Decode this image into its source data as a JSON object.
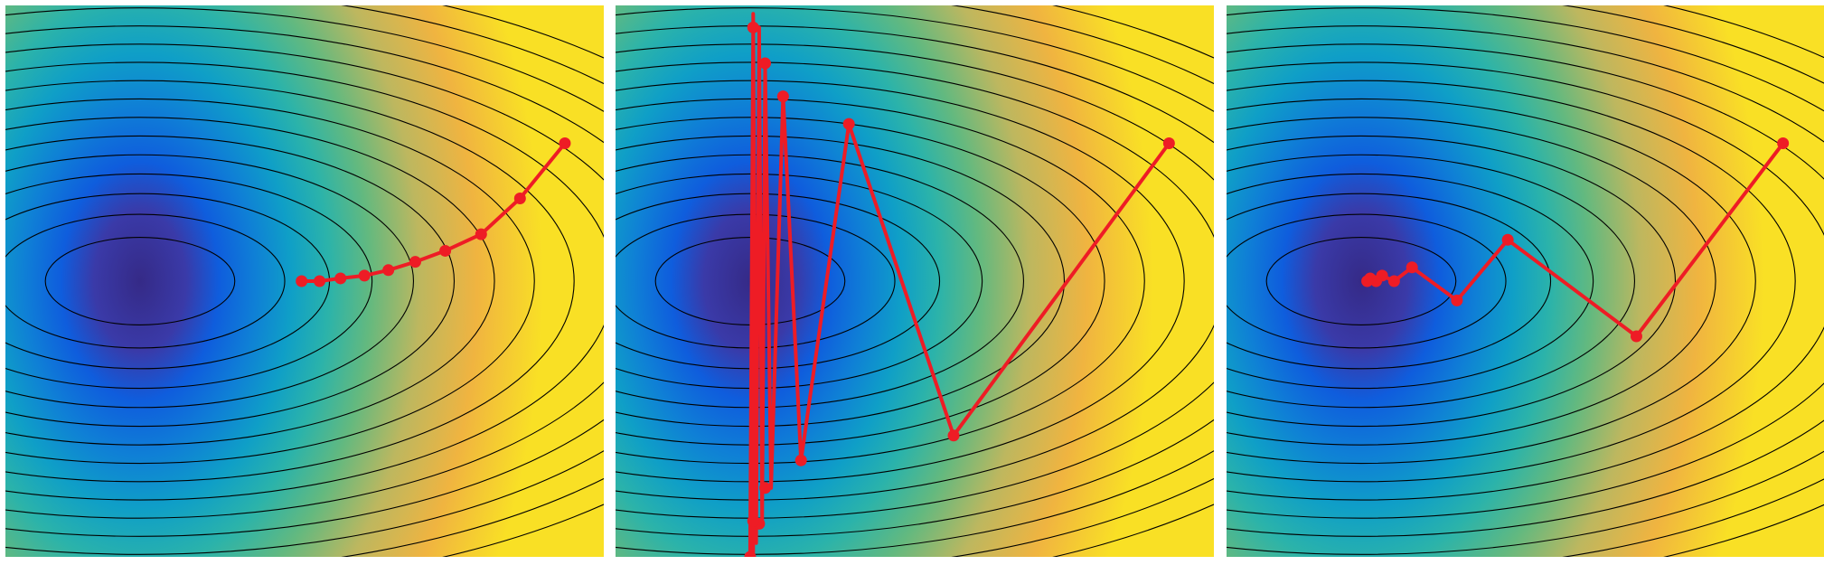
{
  "chart_data": [
    {
      "type": "contour",
      "xlim": [
        -1,
        1
      ],
      "ylim": [
        -1,
        1
      ],
      "center": [
        -0.55,
        0.0
      ],
      "contour_levels": [
        0.06,
        0.14,
        0.24,
        0.36,
        0.5,
        0.66,
        0.84,
        1.04,
        1.26,
        1.5,
        1.76,
        2.04,
        2.34,
        2.66,
        3.0
      ],
      "path": [
        [
          0.87,
          0.5
        ],
        [
          0.72,
          0.3
        ],
        [
          0.59,
          0.17
        ],
        [
          0.47,
          0.11
        ],
        [
          0.37,
          0.07
        ],
        [
          0.28,
          0.04
        ],
        [
          0.2,
          0.02
        ],
        [
          0.12,
          0.01
        ],
        [
          0.05,
          0.0
        ],
        [
          -0.01,
          0.0
        ]
      ],
      "colors": {
        "path": "#ee1c25",
        "contour_line": "#000000"
      }
    },
    {
      "type": "contour",
      "xlim": [
        -1,
        1
      ],
      "ylim": [
        -1,
        1
      ],
      "center": [
        -0.55,
        0.0
      ],
      "contour_levels": [
        0.06,
        0.14,
        0.24,
        0.36,
        0.5,
        0.66,
        0.84,
        1.04,
        1.26,
        1.5,
        1.76,
        2.04,
        2.34,
        2.66,
        3.0
      ],
      "path": [
        [
          0.85,
          0.5
        ],
        [
          0.13,
          -0.56
        ],
        [
          -0.22,
          0.57
        ],
        [
          -0.38,
          -0.65
        ],
        [
          -0.44,
          0.67
        ],
        [
          -0.48,
          -0.75
        ],
        [
          -0.5,
          0.79
        ],
        [
          -0.51,
          -0.88
        ],
        [
          -0.52,
          0.92
        ],
        [
          -0.53,
          -0.95
        ],
        [
          -0.54,
          0.94
        ],
        [
          -0.55,
          -0.98
        ],
        [
          -0.54,
          0.93
        ],
        [
          -0.54,
          -0.9
        ],
        [
          -0.54,
          0.88
        ],
        [
          -0.54,
          -0.93
        ],
        [
          -0.54,
          0.92
        ],
        [
          -0.54,
          -0.97
        ],
        [
          -0.54,
          0.96
        ],
        [
          -0.54,
          -1.0
        ],
        [
          -0.54,
          0.91
        ],
        [
          -0.53,
          -0.9
        ],
        [
          -0.54,
          0.97
        ],
        [
          -0.54,
          -0.86
        ],
        [
          -0.54,
          0.92
        ]
      ],
      "markers": [
        [
          0.85,
          0.5
        ],
        [
          0.13,
          -0.56
        ],
        [
          -0.22,
          0.57
        ],
        [
          -0.38,
          -0.65
        ],
        [
          -0.44,
          0.67
        ],
        [
          -0.5,
          -0.75
        ],
        [
          -0.5,
          0.79
        ],
        [
          -0.52,
          -0.88
        ],
        [
          -0.54,
          0.92
        ],
        [
          -0.55,
          -1.0
        ],
        [
          -0.54,
          -0.87
        ]
      ],
      "colors": {
        "path": "#ee1c25",
        "contour_line": "#000000"
      }
    },
    {
      "type": "contour",
      "xlim": [
        -1,
        1
      ],
      "ylim": [
        -1,
        1
      ],
      "center": [
        -0.55,
        0.0
      ],
      "contour_levels": [
        0.06,
        0.14,
        0.24,
        0.36,
        0.5,
        0.66,
        0.84,
        1.04,
        1.26,
        1.5,
        1.76,
        2.04,
        2.34,
        2.66,
        3.0
      ],
      "path": [
        [
          0.86,
          0.5
        ],
        [
          0.37,
          -0.2
        ],
        [
          -0.06,
          0.15
        ],
        [
          -0.23,
          -0.07
        ],
        [
          -0.38,
          0.05
        ],
        [
          -0.44,
          0.0
        ],
        [
          -0.48,
          0.02
        ],
        [
          -0.5,
          0.0
        ],
        [
          -0.52,
          0.01
        ],
        [
          -0.53,
          0.0
        ]
      ],
      "colors": {
        "path": "#ee1c25",
        "contour_line": "#000000"
      }
    }
  ]
}
